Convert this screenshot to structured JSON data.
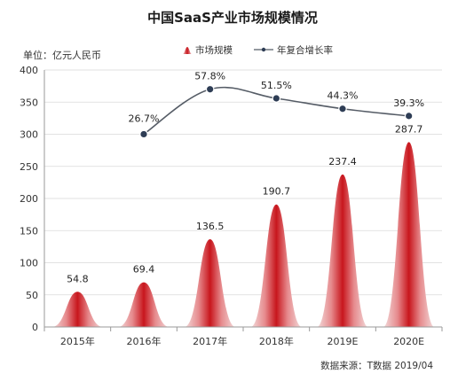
{
  "chart_data": {
    "type": "bar",
    "title": "中国SaaS产业市场规模情况",
    "unit_label": "单位：亿元人民币",
    "categories": [
      "2015年",
      "2016年",
      "2017年",
      "2018年",
      "2019E",
      "2020E"
    ],
    "series": [
      {
        "name": "市场规模",
        "kind": "bar",
        "values": [
          54.8,
          69.4,
          136.5,
          190.7,
          237.4,
          287.7
        ],
        "labels": [
          "54.8",
          "69.4",
          "136.5",
          "190.7",
          "237.4",
          "287.7"
        ]
      },
      {
        "name": "年复合增长率",
        "kind": "line",
        "values": [
          null,
          26.7,
          57.8,
          51.5,
          44.3,
          39.3
        ],
        "labels": [
          "",
          "26.7%",
          "57.8%",
          "51.5%",
          "44.3%",
          "39.3%"
        ]
      }
    ],
    "yticks": [
      "0",
      "50",
      "100",
      "150",
      "200",
      "250",
      "300",
      "350",
      "400"
    ],
    "ylim": [
      0,
      400
    ],
    "legend_position": "top-center",
    "source": "数据来源：T数据 2019/04",
    "colors": {
      "bar": "#c8161d",
      "bar_light": "#f6e1e1",
      "line": "#555c66",
      "marker": "#2e3d55"
    }
  }
}
